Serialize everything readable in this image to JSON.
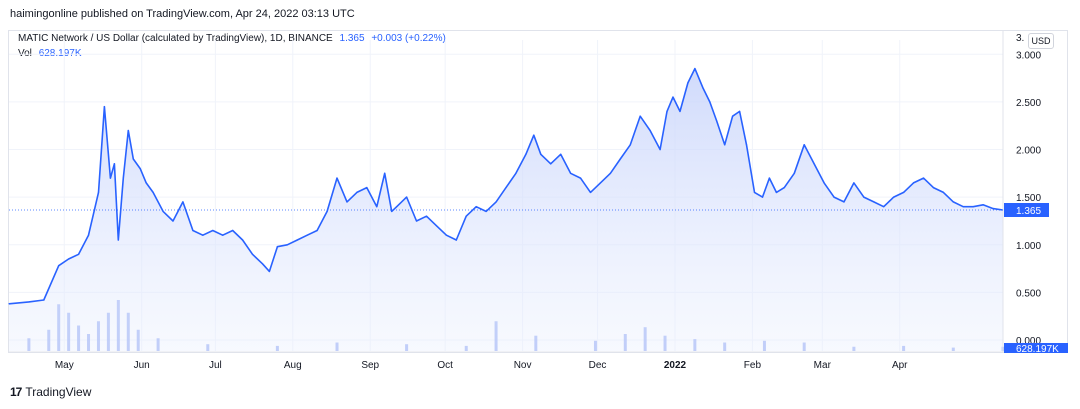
{
  "header": {
    "publish_text": "haimingonline published on TradingView.com, Apr 24, 2022 03:13 UTC"
  },
  "legend": {
    "symbol_text": "MATIC Network / US Dollar (calculated by TradingView), 1D, BINANCE",
    "last_price": "1.365",
    "change": "+0.003 (+0.22%)",
    "vol_label": "Vol",
    "vol_value": "628.197K"
  },
  "currency_button": "USD",
  "axis_top_label": "3.",
  "footer": {
    "brand": "TradingView",
    "logo_mark": "17"
  },
  "colors": {
    "line": "#2962ff",
    "fill_top": "#c8d4fb",
    "volume": "#9db2f5",
    "price_label_bg": "#2962ff",
    "grid": "#f0f3fa"
  },
  "chart_data": {
    "type": "area",
    "title": "MATIC Network / US Dollar (calculated by TradingView), 1D, BINANCE",
    "ylim": [
      0,
      3.15
    ],
    "y_ticks": [
      "3.000",
      "2.500",
      "2.000",
      "1.500",
      "1.000",
      "0.500",
      "0.000"
    ],
    "y_tick_values": [
      3.0,
      2.5,
      2.0,
      1.5,
      1.0,
      0.5,
      0.0
    ],
    "x_tick_labels": [
      "May",
      "Jun",
      "Jul",
      "Aug",
      "Sep",
      "Oct",
      "Nov",
      "Dec",
      "2022",
      "Feb",
      "Mar",
      "Apr"
    ],
    "x_tick_positions": [
      0.0556,
      0.1335,
      0.2076,
      0.2855,
      0.3634,
      0.4388,
      0.5167,
      0.5921,
      0.67,
      0.7479,
      0.8182,
      0.8961
    ],
    "x_range": [
      "2021-04-24",
      "2022-04-24"
    ],
    "last_price": 1.365,
    "last_price_label": "1.365",
    "last_volume_label": "628.197K",
    "series": [
      {
        "name": "MATIC/USD close",
        "x": [
          0.0,
          0.02,
          0.035,
          0.05,
          0.06,
          0.07,
          0.08,
          0.09,
          0.096,
          0.102,
          0.106,
          0.11,
          0.115,
          0.12,
          0.125,
          0.132,
          0.138,
          0.145,
          0.155,
          0.165,
          0.175,
          0.185,
          0.195,
          0.205,
          0.215,
          0.225,
          0.235,
          0.245,
          0.255,
          0.262,
          0.27,
          0.28,
          0.29,
          0.3,
          0.31,
          0.32,
          0.33,
          0.34,
          0.35,
          0.36,
          0.37,
          0.378,
          0.385,
          0.39,
          0.4,
          0.41,
          0.42,
          0.43,
          0.44,
          0.45,
          0.46,
          0.47,
          0.48,
          0.49,
          0.5,
          0.51,
          0.52,
          0.528,
          0.535,
          0.545,
          0.555,
          0.565,
          0.575,
          0.585,
          0.595,
          0.605,
          0.615,
          0.625,
          0.635,
          0.645,
          0.655,
          0.662,
          0.668,
          0.675,
          0.683,
          0.69,
          0.698,
          0.705,
          0.712,
          0.72,
          0.728,
          0.735,
          0.742,
          0.75,
          0.758,
          0.765,
          0.772,
          0.78,
          0.79,
          0.8,
          0.81,
          0.82,
          0.83,
          0.84,
          0.85,
          0.86,
          0.87,
          0.88,
          0.89,
          0.9,
          0.91,
          0.92,
          0.93,
          0.94,
          0.95,
          0.96,
          0.97,
          0.98,
          0.99,
          1.0
        ],
        "y": [
          0.38,
          0.4,
          0.42,
          0.78,
          0.85,
          0.9,
          1.1,
          1.55,
          2.45,
          1.7,
          1.85,
          1.05,
          1.7,
          2.2,
          1.9,
          1.8,
          1.65,
          1.55,
          1.35,
          1.25,
          1.45,
          1.15,
          1.1,
          1.15,
          1.1,
          1.15,
          1.05,
          0.9,
          0.8,
          0.72,
          0.98,
          1.0,
          1.05,
          1.1,
          1.15,
          1.35,
          1.7,
          1.45,
          1.55,
          1.6,
          1.4,
          1.75,
          1.35,
          1.4,
          1.5,
          1.25,
          1.3,
          1.2,
          1.1,
          1.05,
          1.3,
          1.4,
          1.35,
          1.45,
          1.6,
          1.75,
          1.95,
          2.15,
          1.95,
          1.85,
          1.95,
          1.75,
          1.7,
          1.55,
          1.65,
          1.75,
          1.9,
          2.05,
          2.35,
          2.2,
          2.0,
          2.4,
          2.55,
          2.4,
          2.7,
          2.85,
          2.65,
          2.5,
          2.3,
          2.05,
          2.35,
          2.4,
          2.05,
          1.55,
          1.5,
          1.7,
          1.55,
          1.6,
          1.75,
          2.05,
          1.85,
          1.65,
          1.5,
          1.45,
          1.65,
          1.5,
          1.45,
          1.4,
          1.5,
          1.55,
          1.65,
          1.7,
          1.6,
          1.55,
          1.45,
          1.4,
          1.4,
          1.42,
          1.38,
          1.365
        ]
      }
    ],
    "volume_series": {
      "name": "Vol",
      "x": [
        0.02,
        0.04,
        0.05,
        0.06,
        0.07,
        0.08,
        0.09,
        0.1,
        0.11,
        0.12,
        0.13,
        0.15,
        0.2,
        0.27,
        0.33,
        0.4,
        0.46,
        0.49,
        0.53,
        0.59,
        0.62,
        0.64,
        0.66,
        0.69,
        0.72,
        0.76,
        0.8,
        0.85,
        0.9,
        0.95,
        1.0
      ],
      "values": [
        0.15,
        0.25,
        0.55,
        0.45,
        0.3,
        0.2,
        0.35,
        0.45,
        0.6,
        0.45,
        0.25,
        0.15,
        0.08,
        0.06,
        0.1,
        0.08,
        0.06,
        0.35,
        0.18,
        0.12,
        0.2,
        0.28,
        0.18,
        0.14,
        0.1,
        0.12,
        0.1,
        0.05,
        0.06,
        0.04,
        0.05
      ]
    }
  }
}
